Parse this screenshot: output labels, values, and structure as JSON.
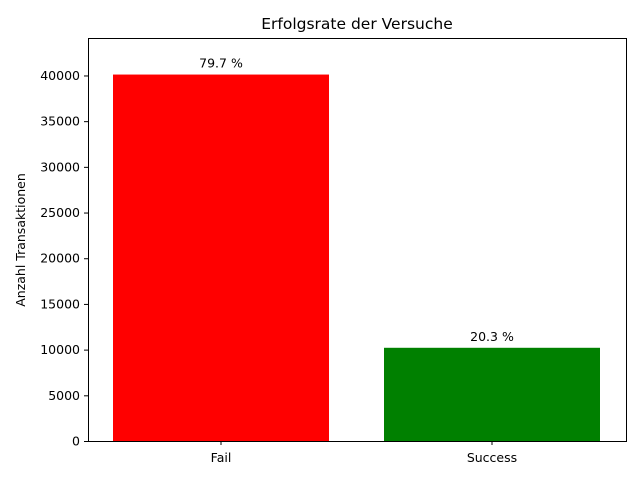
{
  "chart_data": {
    "type": "bar",
    "title": "Erfolgsrate der Versuche",
    "xlabel": "",
    "ylabel": "Anzahl Transaktionen",
    "categories": [
      "Fail",
      "Success"
    ],
    "values": [
      40100,
      10200
    ],
    "colors": [
      "#ff0000",
      "#008000"
    ],
    "data_labels": [
      "79.7 %",
      "20.3 %"
    ],
    "ylim": [
      0,
      44100
    ],
    "yticks": [
      0,
      5000,
      10000,
      15000,
      20000,
      25000,
      30000,
      35000,
      40000
    ],
    "grid": false,
    "legend": "none"
  }
}
